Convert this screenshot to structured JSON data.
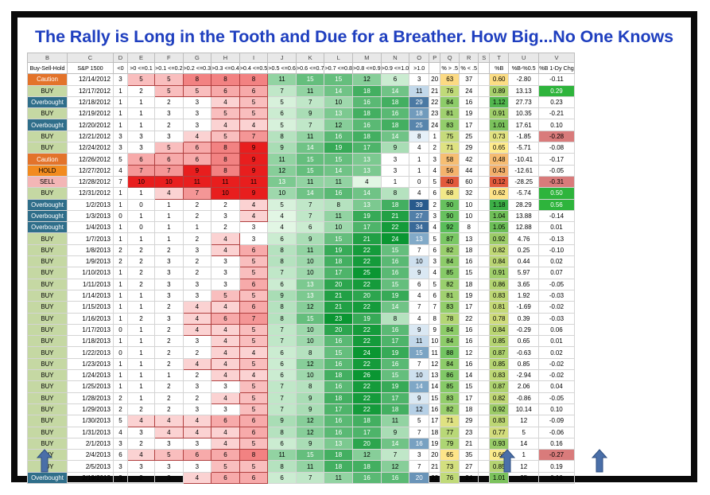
{
  "title": "The Rally is Long in the Tooth and Due for a Breather.  How Big...No One Knows",
  "col_letters": [
    "B",
    "C",
    "D",
    "E",
    "F",
    "G",
    "H",
    "I",
    "J",
    "K",
    "L",
    "M",
    "N",
    "O",
    "P",
    "Q",
    "R",
    "S",
    "T",
    "U",
    "V"
  ],
  "headers": [
    "Buy-Sell-Hold",
    "S&P 1500",
    "<0",
    ">0 <=0.1",
    ">0.1 <=0.2",
    ">0.2 <=0.3",
    ">0.3 <=0.4",
    ">0.4 <=0.5",
    ">0.5 <=0.6",
    ">0.6 <=0.7",
    ">0.7 <=0.8",
    ">0.8 <=0.9",
    ">0.9 <=1.0",
    ">1.0",
    "",
    "% > .5",
    "% < .5",
    "",
    "%B",
    "%B-%0.5",
    "%B 1-Dy Chg"
  ],
  "rows": [
    [
      "Caution",
      "12/14/2012",
      "3",
      "5",
      "5",
      "8",
      "8",
      "8",
      "11",
      "15",
      "15",
      "12",
      "6",
      "3",
      "20",
      "63",
      "37",
      "",
      "0.60",
      "-2.80",
      "-0.11"
    ],
    [
      "BUY",
      "12/17/2012",
      "1",
      "2",
      "5",
      "5",
      "6",
      "6",
      "7",
      "11",
      "14",
      "18",
      "14",
      "11",
      "21",
      "76",
      "24",
      "",
      "0.89",
      "13.13",
      "0.29"
    ],
    [
      "Overbought",
      "12/18/2012",
      "1",
      "1",
      "2",
      "3",
      "4",
      "5",
      "5",
      "7",
      "10",
      "16",
      "18",
      "29",
      "22",
      "84",
      "16",
      "",
      "1.12",
      "27.73",
      "0.23"
    ],
    [
      "BUY",
      "12/19/2012",
      "1",
      "1",
      "3",
      "3",
      "5",
      "5",
      "6",
      "9",
      "13",
      "18",
      "16",
      "18",
      "23",
      "81",
      "19",
      "",
      "0.91",
      "10.35",
      "-0.21"
    ],
    [
      "Overbought",
      "12/20/2012",
      "1",
      "1",
      "2",
      "3",
      "4",
      "4",
      "5",
      "7",
      "12",
      "16",
      "18",
      "25",
      "24",
      "83",
      "17",
      "",
      "1.01",
      "17.61",
      "0.10"
    ],
    [
      "BUY",
      "12/21/2012",
      "3",
      "3",
      "3",
      "4",
      "5",
      "7",
      "8",
      "11",
      "16",
      "18",
      "14",
      "8",
      "1",
      "75",
      "25",
      "",
      "0.73",
      "-1.85",
      "-0.28"
    ],
    [
      "BUY",
      "12/24/2012",
      "3",
      "3",
      "5",
      "6",
      "8",
      "9",
      "9",
      "14",
      "19",
      "17",
      "9",
      "4",
      "2",
      "71",
      "29",
      "",
      "0.65",
      "-5.71",
      "-0.08"
    ],
    [
      "Caution",
      "12/26/2012",
      "5",
      "6",
      "6",
      "6",
      "8",
      "9",
      "11",
      "15",
      "15",
      "13",
      "3",
      "1",
      "3",
      "58",
      "42",
      "",
      "0.48",
      "-10.41",
      "-0.17"
    ],
    [
      "HOLD",
      "12/27/2012",
      "4",
      "7",
      "7",
      "9",
      "8",
      "9",
      "12",
      "15",
      "14",
      "13",
      "3",
      "1",
      "4",
      "56",
      "44",
      "",
      "0.43",
      "-12.61",
      "-0.05"
    ],
    [
      "SELL",
      "12/28/2012",
      "7",
      "10",
      "10",
      "11",
      "11",
      "11",
      "13",
      "11",
      "11",
      "4",
      "1",
      "0",
      "5",
      "40",
      "60",
      "",
      "0.12",
      "-28.25",
      "-0.31"
    ],
    [
      "BUY",
      "12/31/2012",
      "1",
      "1",
      "4",
      "7",
      "10",
      "9",
      "10",
      "14",
      "16",
      "14",
      "8",
      "4",
      "6",
      "68",
      "32",
      "",
      "0.62",
      "-5.74",
      "0.50"
    ],
    [
      "Overbought",
      "1/2/2013",
      "1",
      "0",
      "1",
      "2",
      "2",
      "4",
      "5",
      "7",
      "8",
      "13",
      "18",
      "39",
      "2",
      "90",
      "10",
      "",
      "1.18",
      "28.29",
      "0.56"
    ],
    [
      "Overbought",
      "1/3/2013",
      "0",
      "1",
      "1",
      "2",
      "3",
      "4",
      "4",
      "7",
      "11",
      "19",
      "21",
      "27",
      "3",
      "90",
      "10",
      "",
      "1.04",
      "13.88",
      "-0.14"
    ],
    [
      "Overbought",
      "1/4/2013",
      "1",
      "0",
      "1",
      "1",
      "2",
      "3",
      "4",
      "6",
      "10",
      "17",
      "22",
      "34",
      "4",
      "92",
      "8",
      "",
      "1.05",
      "12.88",
      "0.01"
    ],
    [
      "BUY",
      "1/7/2013",
      "1",
      "1",
      "1",
      "2",
      "4",
      "3",
      "6",
      "9",
      "15",
      "21",
      "24",
      "13",
      "5",
      "87",
      "13",
      "",
      "0.92",
      "4.76",
      "-0.13"
    ],
    [
      "BUY",
      "1/8/2013",
      "2",
      "2",
      "2",
      "3",
      "4",
      "6",
      "8",
      "11",
      "19",
      "22",
      "15",
      "7",
      "6",
      "82",
      "18",
      "",
      "0.82",
      "0.25",
      "-0.10"
    ],
    [
      "BUY",
      "1/9/2013",
      "2",
      "2",
      "3",
      "2",
      "3",
      "5",
      "8",
      "10",
      "18",
      "22",
      "16",
      "10",
      "3",
      "84",
      "16",
      "",
      "0.84",
      "0.44",
      "0.02"
    ],
    [
      "BUY",
      "1/10/2013",
      "1",
      "2",
      "3",
      "2",
      "3",
      "5",
      "7",
      "10",
      "17",
      "25",
      "16",
      "9",
      "4",
      "85",
      "15",
      "",
      "0.91",
      "5.97",
      "0.07"
    ],
    [
      "BUY",
      "1/11/2013",
      "1",
      "2",
      "3",
      "3",
      "3",
      "6",
      "6",
      "13",
      "20",
      "22",
      "15",
      "6",
      "5",
      "82",
      "18",
      "",
      "0.86",
      "3.65",
      "-0.05"
    ],
    [
      "BUY",
      "1/14/2013",
      "1",
      "1",
      "3",
      "3",
      "5",
      "5",
      "9",
      "13",
      "21",
      "20",
      "19",
      "4",
      "6",
      "81",
      "19",
      "",
      "0.83",
      "1.92",
      "-0.03"
    ],
    [
      "BUY",
      "1/15/2013",
      "1",
      "1",
      "2",
      "4",
      "4",
      "6",
      "8",
      "12",
      "21",
      "22",
      "14",
      "7",
      "7",
      "83",
      "17",
      "",
      "0.81",
      "-1.69",
      "-0.02"
    ],
    [
      "BUY",
      "1/16/2013",
      "1",
      "2",
      "3",
      "4",
      "6",
      "7",
      "8",
      "15",
      "23",
      "19",
      "8",
      "4",
      "8",
      "78",
      "22",
      "",
      "0.78",
      "0.39",
      "-0.03"
    ],
    [
      "BUY",
      "1/17/2013",
      "0",
      "1",
      "2",
      "4",
      "4",
      "5",
      "7",
      "10",
      "20",
      "22",
      "16",
      "9",
      "9",
      "84",
      "16",
      "",
      "0.84",
      "-0.29",
      "0.06"
    ],
    [
      "BUY",
      "1/18/2013",
      "1",
      "1",
      "2",
      "3",
      "4",
      "5",
      "7",
      "10",
      "16",
      "22",
      "17",
      "11",
      "10",
      "84",
      "16",
      "",
      "0.85",
      "0.65",
      "0.01"
    ],
    [
      "BUY",
      "1/22/2013",
      "0",
      "1",
      "2",
      "2",
      "4",
      "4",
      "6",
      "8",
      "15",
      "24",
      "19",
      "15",
      "11",
      "88",
      "12",
      "",
      "0.87",
      "-0.63",
      "0.02"
    ],
    [
      "BUY",
      "1/23/2013",
      "1",
      "1",
      "2",
      "4",
      "4",
      "5",
      "6",
      "12",
      "16",
      "22",
      "16",
      "7",
      "12",
      "84",
      "16",
      "",
      "0.85",
      "0.85",
      "-0.02"
    ],
    [
      "BUY",
      "1/24/2013",
      "1",
      "1",
      "1",
      "2",
      "4",
      "4",
      "6",
      "10",
      "18",
      "26",
      "15",
      "10",
      "13",
      "86",
      "14",
      "",
      "0.83",
      "-2.94",
      "-0.02"
    ],
    [
      "BUY",
      "1/25/2013",
      "1",
      "1",
      "2",
      "3",
      "3",
      "5",
      "7",
      "8",
      "16",
      "22",
      "19",
      "14",
      "14",
      "85",
      "15",
      "",
      "0.87",
      "2.06",
      "0.04"
    ],
    [
      "BUY",
      "1/28/2013",
      "2",
      "1",
      "2",
      "2",
      "4",
      "5",
      "7",
      "9",
      "18",
      "22",
      "17",
      "9",
      "15",
      "83",
      "17",
      "",
      "0.82",
      "-0.86",
      "-0.05"
    ],
    [
      "BUY",
      "1/29/2013",
      "2",
      "2",
      "2",
      "3",
      "3",
      "5",
      "7",
      "9",
      "17",
      "22",
      "18",
      "12",
      "16",
      "82",
      "18",
      "",
      "0.92",
      "10.14",
      "0.10"
    ],
    [
      "BUY",
      "1/30/2013",
      "5",
      "4",
      "4",
      "4",
      "6",
      "6",
      "9",
      "12",
      "16",
      "18",
      "11",
      "5",
      "17",
      "71",
      "29",
      "",
      "0.83",
      "12",
      "-0.09"
    ],
    [
      "BUY",
      "1/31/2013",
      "4",
      "3",
      "4",
      "4",
      "4",
      "6",
      "8",
      "12",
      "16",
      "17",
      "9",
      "7",
      "18",
      "77",
      "23",
      "",
      "0.77",
      "5",
      "-0.06"
    ],
    [
      "BUY",
      "2/1/2013",
      "3",
      "2",
      "3",
      "3",
      "4",
      "5",
      "6",
      "9",
      "13",
      "20",
      "14",
      "16",
      "19",
      "79",
      "21",
      "",
      "0.93",
      "14",
      "0.16"
    ],
    [
      "BUY",
      "2/4/2013",
      "6",
      "4",
      "5",
      "6",
      "6",
      "8",
      "11",
      "15",
      "18",
      "12",
      "7",
      "3",
      "20",
      "65",
      "35",
      "",
      "0.66",
      "1",
      "-0.27"
    ],
    [
      "BUY",
      "2/5/2013",
      "3",
      "3",
      "3",
      "3",
      "5",
      "5",
      "8",
      "11",
      "18",
      "18",
      "12",
      "7",
      "21",
      "73",
      "27",
      "",
      "0.85",
      "12",
      "0.19"
    ],
    [
      "Overbought",
      "2/19/2013",
      "3",
      "2",
      "3",
      "4",
      "6",
      "6",
      "6",
      "7",
      "11",
      "16",
      "16",
      "20",
      "22",
      "76",
      "24",
      "",
      "1.01",
      "25",
      "0.16"
    ]
  ],
  "arrows": [
    {
      "name": "arrow-signal-column",
      "color": "#4a6fa8"
    },
    {
      "name": "arrow-over-1-column",
      "color": "#4a6fa8"
    },
    {
      "name": "arrow-percent-b-column",
      "color": "#4a6fa8"
    }
  ]
}
